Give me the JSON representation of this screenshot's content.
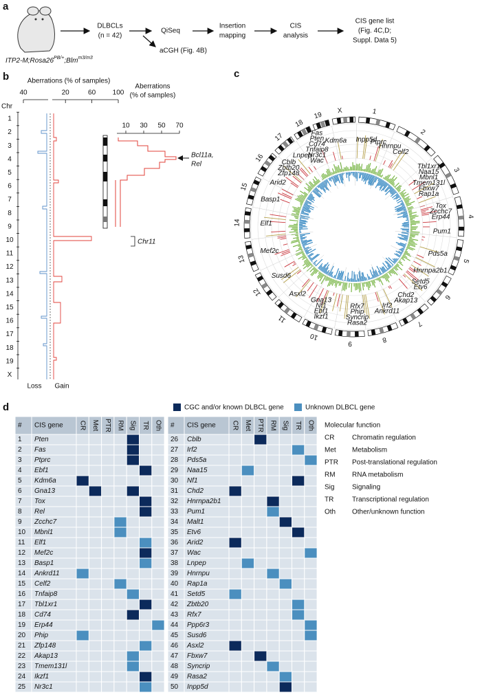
{
  "panel_a": {
    "label": "a",
    "genotype": [
      "ITP2-M;Rosa26",
      "PB/+",
      ";Blm",
      "m3/m3"
    ],
    "steps": [
      [
        "DLBCLs",
        "(n = 42)"
      ],
      [
        "QiSeq"
      ],
      [
        "Insertion",
        "mapping"
      ],
      [
        "CIS",
        "analysis"
      ],
      [
        "CIS gene list",
        "(Fig. 4C,D;",
        "Suppl. Data 5)"
      ]
    ],
    "branch": "aCGH (Fig. 4B)"
  },
  "panel_b": {
    "label": "b",
    "axis_title": "Aberrations (% of samples)",
    "loss_ticks": [
      40
    ],
    "gain_ticks": [
      20,
      60,
      100
    ],
    "chr_label": "Chr",
    "chromosomes": [
      "1",
      "2",
      "3",
      "4",
      "5",
      "6",
      "7",
      "8",
      "9",
      "10",
      "11",
      "12",
      "13",
      "14",
      "15",
      "16",
      "17",
      "18",
      "19",
      "X"
    ],
    "loss_label": "Loss",
    "gain_label": "Gain",
    "inset_title": [
      "Aberrations",
      "(% of samples)"
    ],
    "inset_ticks": [
      10,
      30,
      50,
      70
    ],
    "callout": [
      "Bcl11a,",
      "Rel"
    ],
    "bracket_label": "Chr11"
  },
  "panel_c": {
    "label": "c",
    "chromosomes": [
      "1",
      "2",
      "3",
      "4",
      "5",
      "6",
      "7",
      "8",
      "9",
      "10",
      "11",
      "12",
      "13",
      "14",
      "15",
      "16",
      "17",
      "18",
      "19",
      "X"
    ],
    "genes": [
      [
        "Inpp5d"
      ],
      [
        "Ptprc"
      ],
      [
        "Hnrnpu"
      ],
      [
        "Celf2"
      ],
      [
        "Tbl1xr1",
        "Naa15",
        "Mbnl1",
        "Tmem131l",
        "Fbxw7",
        "Rap1a"
      ],
      [
        "Tox",
        "Zcchc7",
        "Erp44"
      ],
      [
        "Pum1"
      ],
      [
        "Pds5a"
      ],
      [
        "Hnrnpa2b1"
      ],
      [
        "Setd5",
        "Etv6"
      ],
      [
        "Chd2",
        "Akap13"
      ],
      [
        "Irf2",
        "Ankrd11"
      ],
      [
        "Rfx7",
        "Phip",
        "Syncrip",
        "Rasa2"
      ],
      [
        "Gna13",
        "Nf1",
        "Ebf1",
        "Ikzf1"
      ],
      [
        "Asxl2"
      ],
      [
        "Susd6"
      ],
      [
        "Mef2c"
      ],
      [
        "Elf1"
      ],
      [
        "Basp1"
      ],
      [
        "Arid2"
      ],
      [
        "Cblb",
        "Zbtb20",
        "Zfp148"
      ],
      [
        "Lnpep"
      ],
      [
        "Fas",
        "Pten",
        "Cd74",
        "Tnfaip8",
        "Nr3c1",
        "Wac"
      ],
      [
        "Kdm6a"
      ]
    ]
  },
  "panel_d": {
    "label": "d",
    "legend": [
      {
        "label": "CGC and/or known DLBCL gene",
        "color": "#0c2a5b"
      },
      {
        "label": "Unknown DLBCL gene",
        "color": "#4b8fbf"
      }
    ],
    "header": [
      "#",
      "CIS gene",
      "CR",
      "Met",
      "PTR",
      "RM",
      "Sig",
      "TR",
      "Oth"
    ],
    "rows": [
      {
        "n": 1,
        "gene": "Pten",
        "cells": [
          {
            "column": "Sig",
            "color": "#0c2a5b"
          }
        ]
      },
      {
        "n": 2,
        "gene": "Fas",
        "cells": [
          {
            "column": "Sig",
            "color": "#0c2a5b"
          }
        ]
      },
      {
        "n": 3,
        "gene": "Ptprc",
        "cells": [
          {
            "column": "Sig",
            "color": "#0c2a5b"
          }
        ]
      },
      {
        "n": 4,
        "gene": "Ebf1",
        "cells": [
          {
            "column": "TR",
            "color": "#0c2a5b"
          }
        ]
      },
      {
        "n": 5,
        "gene": "Kdm6a",
        "cells": [
          {
            "column": "CR",
            "color": "#0c2a5b"
          }
        ]
      },
      {
        "n": 6,
        "gene": "Gna13",
        "cells": [
          {
            "column": "Met",
            "color": "#0c2a5b"
          },
          {
            "column": "Sig",
            "color": "#0c2a5b"
          }
        ]
      },
      {
        "n": 7,
        "gene": "Tox",
        "cells": [
          {
            "column": "TR",
            "color": "#0c2a5b"
          }
        ]
      },
      {
        "n": 8,
        "gene": "Rel",
        "cells": [
          {
            "column": "TR",
            "color": "#0c2a5b"
          }
        ]
      },
      {
        "n": 9,
        "gene": "Zcchc7",
        "cells": [
          {
            "column": "RM",
            "color": "#4b8fbf"
          }
        ]
      },
      {
        "n": 10,
        "gene": "Mbnl1",
        "cells": [
          {
            "column": "RM",
            "color": "#4b8fbf"
          }
        ]
      },
      {
        "n": 11,
        "gene": "Elf1",
        "cells": [
          {
            "column": "TR",
            "color": "#4b8fbf"
          }
        ]
      },
      {
        "n": 12,
        "gene": "Mef2c",
        "cells": [
          {
            "column": "TR",
            "color": "#0c2a5b"
          }
        ]
      },
      {
        "n": 13,
        "gene": "Basp1",
        "cells": [
          {
            "column": "TR",
            "color": "#4b8fbf"
          }
        ]
      },
      {
        "n": 14,
        "gene": "Ankrd11",
        "cells": [
          {
            "column": "CR",
            "color": "#4b8fbf"
          }
        ]
      },
      {
        "n": 15,
        "gene": "Celf2",
        "cells": [
          {
            "column": "RM",
            "color": "#4b8fbf"
          }
        ]
      },
      {
        "n": 16,
        "gene": "Tnfaip8",
        "cells": [
          {
            "column": "Sig",
            "color": "#4b8fbf"
          }
        ]
      },
      {
        "n": 17,
        "gene": "Tbl1xr1",
        "cells": [
          {
            "column": "TR",
            "color": "#0c2a5b"
          }
        ]
      },
      {
        "n": 18,
        "gene": "Cd74",
        "cells": [
          {
            "column": "Sig",
            "color": "#0c2a5b"
          }
        ]
      },
      {
        "n": 19,
        "gene": "Erp44",
        "cells": [
          {
            "column": "Oth",
            "color": "#4b8fbf"
          }
        ]
      },
      {
        "n": 20,
        "gene": "Phip",
        "cells": [
          {
            "column": "CR",
            "color": "#4b8fbf"
          }
        ]
      },
      {
        "n": 21,
        "gene": "Zfp148",
        "cells": [
          {
            "column": "TR",
            "color": "#4b8fbf"
          }
        ]
      },
      {
        "n": 22,
        "gene": "Akap13",
        "cells": [
          {
            "column": "Sig",
            "color": "#4b8fbf"
          }
        ]
      },
      {
        "n": 23,
        "gene": "Tmem131l",
        "cells": [
          {
            "column": "Sig",
            "color": "#4b8fbf"
          }
        ]
      },
      {
        "n": 24,
        "gene": "Ikzf1",
        "cells": [
          {
            "column": "TR",
            "color": "#0c2a5b"
          }
        ]
      },
      {
        "n": 25,
        "gene": "Nr3c1",
        "cells": [
          {
            "column": "TR",
            "color": "#4b8fbf"
          }
        ]
      },
      {
        "n": 26,
        "gene": "Cblb",
        "cells": [
          {
            "column": "PTR",
            "color": "#0c2a5b"
          }
        ]
      },
      {
        "n": 27,
        "gene": "Irf2",
        "cells": [
          {
            "column": "TR",
            "color": "#4b8fbf"
          }
        ]
      },
      {
        "n": 28,
        "gene": "Pds5a",
        "cells": [
          {
            "column": "Oth",
            "color": "#4b8fbf"
          }
        ]
      },
      {
        "n": 29,
        "gene": "Naa15",
        "cells": [
          {
            "column": "Met",
            "color": "#4b8fbf"
          }
        ]
      },
      {
        "n": 30,
        "gene": "Nf1",
        "cells": [
          {
            "column": "TR",
            "color": "#0c2a5b"
          }
        ]
      },
      {
        "n": 31,
        "gene": "Chd2",
        "cells": [
          {
            "column": "CR",
            "color": "#0c2a5b"
          }
        ]
      },
      {
        "n": 32,
        "gene": "Hnrnpa2b1",
        "cells": [
          {
            "column": "RM",
            "color": "#0c2a5b"
          }
        ]
      },
      {
        "n": 33,
        "gene": "Pum1",
        "cells": [
          {
            "column": "RM",
            "color": "#4b8fbf"
          }
        ]
      },
      {
        "n": 34,
        "gene": "Malt1",
        "cells": [
          {
            "column": "Sig",
            "color": "#0c2a5b"
          }
        ]
      },
      {
        "n": 35,
        "gene": "Etv6",
        "cells": [
          {
            "column": "TR",
            "color": "#0c2a5b"
          }
        ]
      },
      {
        "n": 36,
        "gene": "Arid2",
        "cells": [
          {
            "column": "CR",
            "color": "#0c2a5b"
          }
        ]
      },
      {
        "n": 37,
        "gene": "Wac",
        "cells": [
          {
            "column": "Oth",
            "color": "#4b8fbf"
          }
        ]
      },
      {
        "n": 38,
        "gene": "Lnpep",
        "cells": [
          {
            "column": "Met",
            "color": "#4b8fbf"
          }
        ]
      },
      {
        "n": 39,
        "gene": "Hnrnpu",
        "cells": [
          {
            "column": "RM",
            "color": "#4b8fbf"
          }
        ]
      },
      {
        "n": 40,
        "gene": "Rap1a",
        "cells": [
          {
            "column": "Sig",
            "color": "#4b8fbf"
          }
        ]
      },
      {
        "n": 41,
        "gene": "Setd5",
        "cells": [
          {
            "column": "CR",
            "color": "#4b8fbf"
          }
        ]
      },
      {
        "n": 42,
        "gene": "Zbtb20",
        "cells": [
          {
            "column": "TR",
            "color": "#4b8fbf"
          }
        ]
      },
      {
        "n": 43,
        "gene": "Rfx7",
        "cells": [
          {
            "column": "TR",
            "color": "#4b8fbf"
          }
        ]
      },
      {
        "n": 44,
        "gene": "Ppp6r3",
        "cells": [
          {
            "column": "Oth",
            "color": "#4b8fbf"
          }
        ]
      },
      {
        "n": 45,
        "gene": "Susd6",
        "cells": [
          {
            "column": "Oth",
            "color": "#4b8fbf"
          }
        ]
      },
      {
        "n": 46,
        "gene": "Asxl2",
        "cells": [
          {
            "column": "CR",
            "color": "#0c2a5b"
          }
        ]
      },
      {
        "n": 47,
        "gene": "Fbxw7",
        "cells": [
          {
            "column": "PTR",
            "color": "#0c2a5b"
          }
        ]
      },
      {
        "n": 48,
        "gene": "Syncrip",
        "cells": [
          {
            "column": "RM",
            "color": "#4b8fbf"
          }
        ]
      },
      {
        "n": 49,
        "gene": "Rasa2",
        "cells": [
          {
            "column": "Sig",
            "color": "#4b8fbf"
          }
        ]
      },
      {
        "n": 50,
        "gene": "Inpp5d",
        "cells": [
          {
            "column": "Sig",
            "color": "#0c2a5b"
          }
        ]
      }
    ],
    "functions": {
      "title": "Molecular function",
      "items": [
        [
          "CR",
          "Chromatin regulation"
        ],
        [
          "Met",
          "Metabolism"
        ],
        [
          "PTR",
          "Post-translational regulation"
        ],
        [
          "RM",
          "RNA metabolism"
        ],
        [
          "Sig",
          "Signaling"
        ],
        [
          "TR",
          "Transcriptional regulation"
        ],
        [
          "Oth",
          "Other/unknown function"
        ]
      ]
    }
  }
}
